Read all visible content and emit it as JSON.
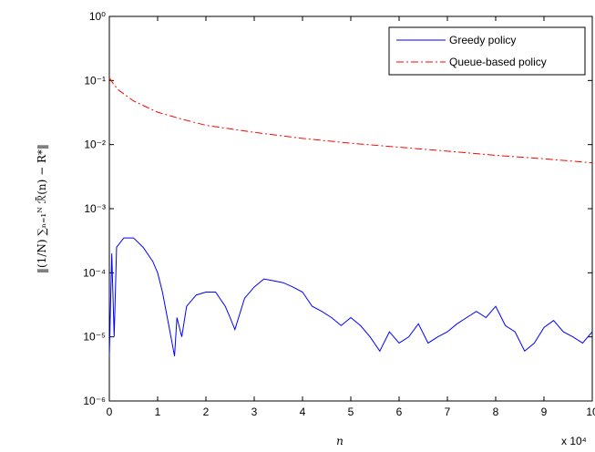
{
  "chart_data": {
    "type": "line",
    "log_y": true,
    "xlabel": "n",
    "ylabel": "‖(1/N) ∑ₙ₌₁ᴺ ℛ̄(n) − R*‖",
    "x_multiplier": "x 10⁴",
    "xlim": [
      0,
      10
    ],
    "xticks": [
      0,
      1,
      2,
      3,
      4,
      5,
      6,
      7,
      8,
      9,
      10
    ],
    "ylim": [
      1e-06,
      1
    ],
    "yticks": [
      {
        "value": 1e-06,
        "label": "10⁻⁶"
      },
      {
        "value": 1e-05,
        "label": "10⁻⁵"
      },
      {
        "value": 0.0001,
        "label": "10⁻⁴"
      },
      {
        "value": 0.001,
        "label": "10⁻³"
      },
      {
        "value": 0.01,
        "label": "10⁻²"
      },
      {
        "value": 0.1,
        "label": "10⁻¹"
      },
      {
        "value": 1,
        "label": "10⁰"
      }
    ],
    "legend": "top-right",
    "series": [
      {
        "name": "Greedy policy",
        "color": "#0000ff",
        "dash": "solid",
        "x": [
          0,
          0.05,
          0.1,
          0.15,
          0.3,
          0.5,
          0.7,
          0.9,
          1.0,
          1.1,
          1.2,
          1.3,
          1.35,
          1.4,
          1.5,
          1.6,
          1.8,
          2.0,
          2.2,
          2.4,
          2.5,
          2.6,
          2.8,
          3.0,
          3.2,
          3.4,
          3.6,
          3.8,
          4.0,
          4.2,
          4.4,
          4.6,
          4.8,
          5.0,
          5.2,
          5.4,
          5.6,
          5.8,
          6.0,
          6.2,
          6.4,
          6.6,
          6.8,
          7.0,
          7.2,
          7.4,
          7.6,
          7.8,
          8.0,
          8.2,
          8.4,
          8.6,
          8.8,
          9.0,
          9.2,
          9.4,
          9.6,
          9.8,
          10
        ],
        "values": [
          5e-06,
          0.0002,
          1e-05,
          0.00025,
          0.00035,
          0.00035,
          0.00025,
          0.00015,
          0.0001,
          5e-05,
          2e-05,
          8e-06,
          5e-06,
          2e-05,
          1e-05,
          3e-05,
          4.5e-05,
          5e-05,
          5e-05,
          3e-05,
          2e-05,
          1.3e-05,
          4e-05,
          6e-05,
          8e-05,
          7.5e-05,
          7e-05,
          6e-05,
          5e-05,
          3e-05,
          2.5e-05,
          2e-05,
          1.5e-05,
          2e-05,
          1.5e-05,
          1e-05,
          6e-06,
          1.2e-05,
          8e-06,
          1e-05,
          1.6e-05,
          8e-06,
          1e-05,
          1.2e-05,
          1.6e-05,
          2e-05,
          2.5e-05,
          2e-05,
          3e-05,
          1.5e-05,
          1.2e-05,
          6e-06,
          8e-06,
          1.4e-05,
          1.8e-05,
          1.2e-05,
          1e-05,
          8e-06,
          1.2e-05
        ]
      },
      {
        "name": "Queue-based policy",
        "color": "#ff0000",
        "dash": "dash-dot",
        "x": [
          0,
          0.1,
          0.2,
          0.5,
          1,
          1.5,
          2,
          3,
          4,
          5,
          6,
          7,
          8,
          9,
          10
        ],
        "values": [
          0.11,
          0.085,
          0.07,
          0.048,
          0.032,
          0.025,
          0.02,
          0.0155,
          0.0125,
          0.0105,
          0.0091,
          0.0079,
          0.0068,
          0.006,
          0.0052
        ]
      }
    ]
  }
}
